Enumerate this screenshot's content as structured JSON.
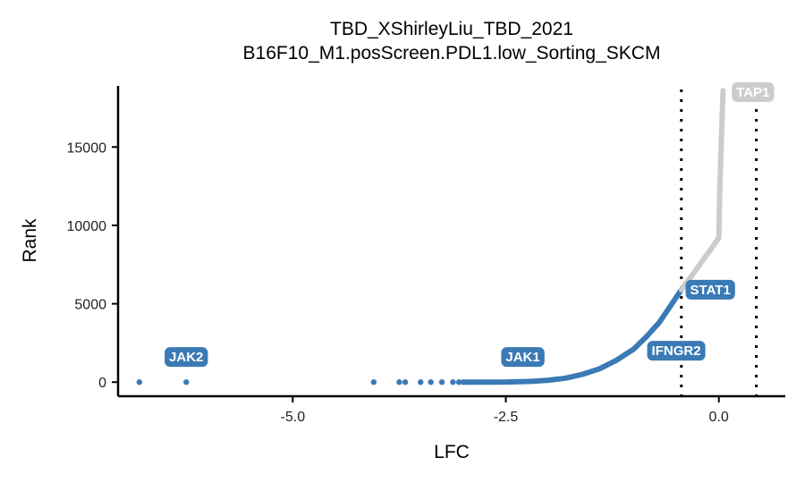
{
  "chart_data": {
    "type": "scatter",
    "title": "TBD_XShirleyLiu_TBD_2021",
    "subtitle": "B16F10_M1.posScreen.PDL1.low_Sorting_SKCM",
    "xlabel": "LFC",
    "ylabel": "Rank",
    "xlim": [
      -7.05,
      0.78
    ],
    "ylim": [
      -900,
      18900
    ],
    "x_ticks": [
      -5.0,
      -2.5,
      0.0
    ],
    "x_tick_labels": [
      "-5.0",
      "-2.5",
      "0.0"
    ],
    "y_ticks": [
      0,
      5000,
      10000,
      15000
    ],
    "y_tick_labels": [
      "0",
      "5000",
      "10000",
      "15000"
    ],
    "thresholds": [
      -0.44,
      0.44
    ],
    "threshold_style": "dotted",
    "grid": false,
    "legend": "none",
    "colors": {
      "significant": "#3a7ab5",
      "nonsignificant": "#cccccc",
      "label_sig": "#3a7ab5",
      "label_nonsig": "#cccccc"
    },
    "isolated_points": [
      {
        "x": -6.8,
        "y": 0
      },
      {
        "x": -6.25,
        "y": 0
      },
      {
        "x": -4.05,
        "y": 0
      },
      {
        "x": -3.75,
        "y": 0
      },
      {
        "x": -3.68,
        "y": 0
      },
      {
        "x": -3.5,
        "y": 0
      },
      {
        "x": -3.38,
        "y": 0
      },
      {
        "x": -3.25,
        "y": 0
      },
      {
        "x": -3.12,
        "y": 0
      },
      {
        "x": -3.05,
        "y": 0
      },
      {
        "x": -3.0,
        "y": 0
      },
      {
        "x": -2.97,
        "y": 0
      }
    ],
    "series": [
      {
        "group": "significant",
        "points": [
          {
            "x": -2.95,
            "y": 0
          },
          {
            "x": -2.5,
            "y": 10
          },
          {
            "x": -2.2,
            "y": 50
          },
          {
            "x": -2.0,
            "y": 120
          },
          {
            "x": -1.8,
            "y": 250
          },
          {
            "x": -1.6,
            "y": 500
          },
          {
            "x": -1.4,
            "y": 850
          },
          {
            "x": -1.2,
            "y": 1400
          },
          {
            "x": -1.0,
            "y": 2100
          },
          {
            "x": -0.85,
            "y": 2900
          },
          {
            "x": -0.7,
            "y": 3800
          },
          {
            "x": -0.55,
            "y": 5000
          },
          {
            "x": -0.44,
            "y": 5900
          }
        ]
      },
      {
        "group": "nonsignificant",
        "points": [
          {
            "x": -0.44,
            "y": 5900
          },
          {
            "x": -0.25,
            "y": 7300
          },
          {
            "x": 0.0,
            "y": 9200
          },
          {
            "x": 0.01,
            "y": 12000
          },
          {
            "x": 0.03,
            "y": 15500
          },
          {
            "x": 0.05,
            "y": 18600
          }
        ]
      }
    ],
    "labels": [
      {
        "text": "JAK2",
        "x": -6.25,
        "y": 1600,
        "group": "significant"
      },
      {
        "text": "JAK1",
        "x": -2.3,
        "y": 1600,
        "group": "significant"
      },
      {
        "text": "IFNGR2",
        "x": -0.5,
        "y": 2000,
        "group": "significant"
      },
      {
        "text": "STAT1",
        "x": -0.1,
        "y": 5900,
        "group": "significant"
      },
      {
        "text": "TAP1",
        "x": 0.4,
        "y": 18500,
        "group": "nonsignificant"
      }
    ]
  }
}
